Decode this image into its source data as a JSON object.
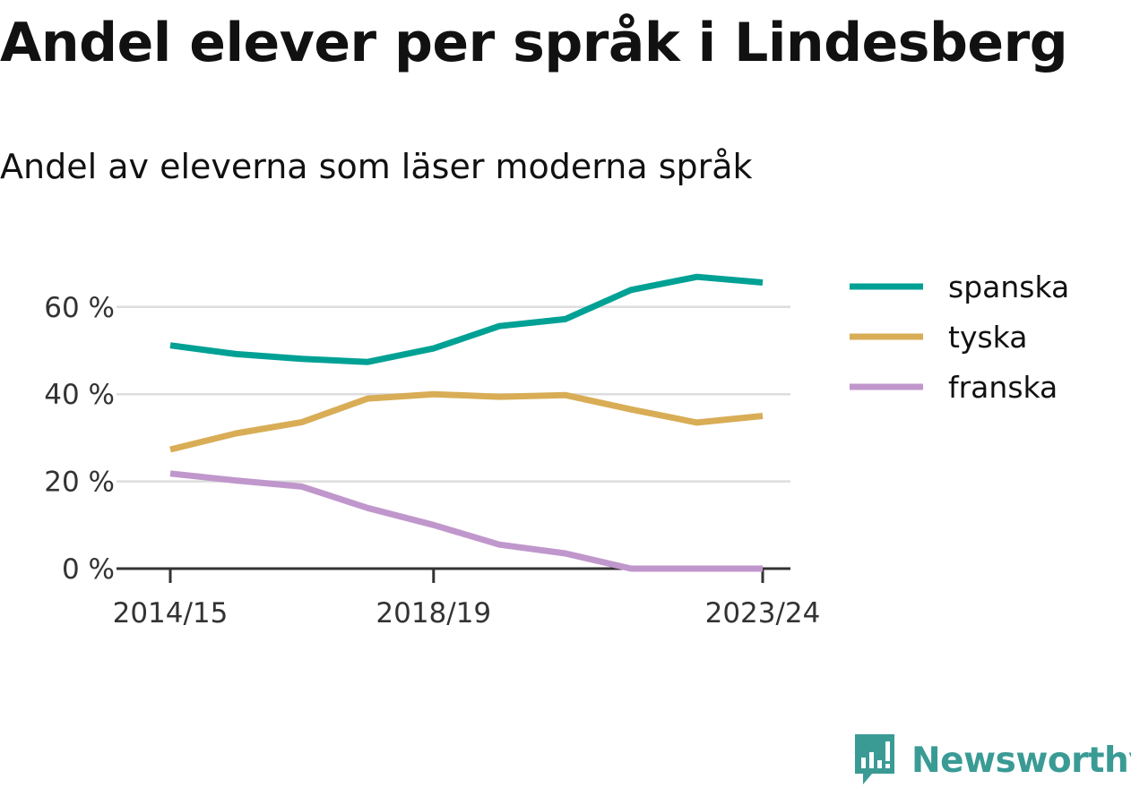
{
  "title": "Andel elever per språk i Lindesberg",
  "subtitle": "Andel av eleverna som läser moderna språk",
  "logo": {
    "text": "Newsworthy",
    "icon": "bar-chart-speech-icon",
    "color": "#3a9b95"
  },
  "chart_data": {
    "type": "line",
    "title": "Andel elever per språk i Lindesberg",
    "subtitle": "Andel av eleverna som läser moderna språk",
    "x": [
      "2014/15",
      "2015/16",
      "2016/17",
      "2017/18",
      "2018/19",
      "2019/20",
      "2020/21",
      "2021/22",
      "2022/23",
      "2023/24"
    ],
    "xticks": [
      "2014/15",
      "2018/19",
      "2023/24"
    ],
    "yticks": [
      0,
      20,
      40,
      60
    ],
    "ytick_labels": [
      "0 %",
      "20 %",
      "40 %",
      "60 %"
    ],
    "ylim": [
      0,
      70
    ],
    "grid": "horizontal",
    "legend": "right",
    "series": [
      {
        "name": "spanska",
        "color": "#00a195",
        "values": [
          51.2,
          49.2,
          48.1,
          47.4,
          50.5,
          55.6,
          57.2,
          63.9,
          66.9,
          65.6
        ]
      },
      {
        "name": "tyska",
        "color": "#d8ad56",
        "values": [
          27.3,
          31.0,
          33.6,
          39.0,
          40.0,
          39.4,
          39.8,
          36.5,
          33.5,
          35.0
        ]
      },
      {
        "name": "franska",
        "color": "#c097cc",
        "values": [
          21.8,
          20.2,
          18.8,
          13.9,
          10.0,
          5.5,
          3.5,
          0.0,
          0.0,
          0.0
        ]
      }
    ]
  }
}
